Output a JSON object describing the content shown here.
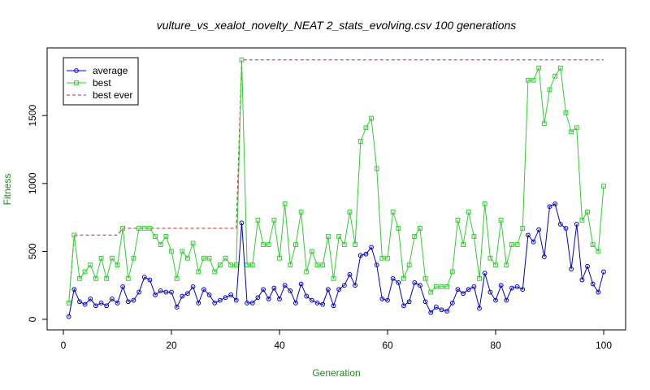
{
  "chart_data": {
    "type": "line",
    "title": "vulture_vs_xealot_novelty_NEAT 2_stats_evolving.csv 100 generations",
    "xlabel": "Generation",
    "ylabel": "Fitness",
    "xlim": [
      0,
      100
    ],
    "ylim": [
      0,
      1920
    ],
    "xticks": [
      0,
      20,
      40,
      60,
      80,
      100
    ],
    "yticks": [
      0,
      500,
      1000,
      1500
    ],
    "grid": false,
    "legend_position": "top-left",
    "x": [
      1,
      2,
      3,
      4,
      5,
      6,
      7,
      8,
      9,
      10,
      11,
      12,
      13,
      14,
      15,
      16,
      17,
      18,
      19,
      20,
      21,
      22,
      23,
      24,
      25,
      26,
      27,
      28,
      29,
      30,
      31,
      32,
      33,
      34,
      35,
      36,
      37,
      38,
      39,
      40,
      41,
      42,
      43,
      44,
      45,
      46,
      47,
      48,
      49,
      50,
      51,
      52,
      53,
      54,
      55,
      56,
      57,
      58,
      59,
      60,
      61,
      62,
      63,
      64,
      65,
      66,
      67,
      68,
      69,
      70,
      71,
      72,
      73,
      74,
      75,
      76,
      77,
      78,
      79,
      80,
      81,
      82,
      83,
      84,
      85,
      86,
      87,
      88,
      89,
      90,
      91,
      92,
      93,
      94,
      95,
      96,
      97,
      98,
      99,
      100
    ],
    "series": [
      {
        "name": "average",
        "color": "#0000cc",
        "marker": "circle",
        "line": "solid",
        "values": [
          20,
          220,
          130,
          110,
          150,
          100,
          120,
          100,
          150,
          120,
          240,
          130,
          140,
          200,
          310,
          290,
          180,
          210,
          200,
          200,
          90,
          170,
          190,
          240,
          120,
          220,
          180,
          120,
          140,
          160,
          180,
          140,
          710,
          120,
          120,
          160,
          220,
          150,
          230,
          150,
          250,
          210,
          120,
          260,
          170,
          140,
          120,
          110,
          220,
          100,
          220,
          250,
          330,
          250,
          470,
          480,
          530,
          400,
          150,
          140,
          300,
          270,
          100,
          130,
          270,
          250,
          130,
          50,
          90,
          70,
          60,
          120,
          220,
          190,
          220,
          240,
          80,
          340,
          200,
          140,
          250,
          140,
          230,
          240,
          220,
          620,
          570,
          660,
          460,
          830,
          850,
          700,
          670,
          370,
          700,
          290,
          390,
          260,
          200,
          350
        ]
      },
      {
        "name": "best",
        "color": "#33cc33",
        "marker": "square",
        "line": "solid",
        "values": [
          120,
          620,
          300,
          350,
          400,
          300,
          450,
          300,
          450,
          400,
          670,
          300,
          450,
          670,
          670,
          670,
          610,
          550,
          610,
          500,
          300,
          500,
          450,
          560,
          350,
          450,
          450,
          350,
          400,
          450,
          400,
          400,
          1910,
          400,
          400,
          730,
          550,
          550,
          730,
          450,
          850,
          400,
          550,
          790,
          350,
          500,
          400,
          400,
          610,
          300,
          610,
          550,
          790,
          550,
          1310,
          1410,
          1480,
          1110,
          450,
          450,
          790,
          670,
          300,
          400,
          610,
          670,
          300,
          200,
          240,
          240,
          240,
          350,
          730,
          550,
          790,
          610,
          300,
          850,
          450,
          400,
          730,
          400,
          550,
          550,
          670,
          1760,
          1760,
          1850,
          1440,
          1690,
          1790,
          1850,
          1520,
          1380,
          1410,
          730,
          790,
          550,
          500,
          980
        ]
      },
      {
        "name": "best ever",
        "color": "#cc2222",
        "marker": "none",
        "line": "dashed",
        "values": [
          120,
          620,
          620,
          620,
          620,
          620,
          620,
          620,
          620,
          620,
          670,
          670,
          670,
          670,
          670,
          670,
          670,
          670,
          670,
          670,
          670,
          670,
          670,
          670,
          670,
          670,
          670,
          670,
          670,
          670,
          670,
          670,
          1910,
          1910,
          1910,
          1910,
          1910,
          1910,
          1910,
          1910,
          1910,
          1910,
          1910,
          1910,
          1910,
          1910,
          1910,
          1910,
          1910,
          1910,
          1910,
          1910,
          1910,
          1910,
          1910,
          1910,
          1910,
          1910,
          1910,
          1910,
          1910,
          1910,
          1910,
          1910,
          1910,
          1910,
          1910,
          1910,
          1910,
          1910,
          1910,
          1910,
          1910,
          1910,
          1910,
          1910,
          1910,
          1910,
          1910,
          1910,
          1910,
          1910,
          1910,
          1910,
          1910,
          1910,
          1910,
          1910,
          1910,
          1910,
          1910,
          1910,
          1910,
          1910,
          1910,
          1910,
          1910,
          1910,
          1910,
          1910
        ]
      }
    ]
  }
}
